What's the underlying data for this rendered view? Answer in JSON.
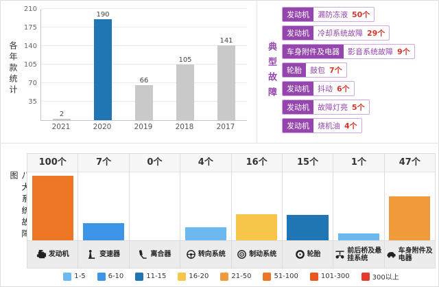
{
  "typical_faults": {
    "title": "典型故障",
    "accent_color": "#9446ad",
    "count_color": "#d5352b",
    "items": [
      {
        "system": "发动机",
        "fault": "漏防冻液",
        "count": "50个"
      },
      {
        "system": "发动机",
        "fault": "冷却系统故障",
        "count": "29个"
      },
      {
        "system": "车身附件及电器",
        "fault": "影音系统故障",
        "count": "9个"
      },
      {
        "system": "轮胎",
        "fault": "鼓包",
        "count": "7个"
      },
      {
        "system": "发动机",
        "fault": "抖动",
        "count": "6个"
      },
      {
        "system": "发动机",
        "fault": "故障灯亮",
        "count": "5个"
      },
      {
        "system": "发动机",
        "fault": "烧机油",
        "count": "4个"
      }
    ]
  },
  "chart_data": [
    {
      "type": "bar",
      "title": "各年款统计",
      "categories": [
        "2021",
        "2020",
        "2019",
        "2018",
        "2017"
      ],
      "values": [
        2,
        190,
        66,
        105,
        141
      ],
      "ylim": [
        0,
        210
      ],
      "yticks": [
        35,
        70,
        105,
        140,
        175,
        210
      ],
      "bar_colors": [
        "#c9c9c9",
        "#2076b4",
        "#c9c9c9",
        "#c9c9c9",
        "#c9c9c9"
      ],
      "highlight_color": "#2076b4",
      "grid": true,
      "data_labels": true,
      "xlabel": "",
      "ylabel": ""
    },
    {
      "type": "bar",
      "title": "八大系统故障图",
      "categories": [
        "发动机",
        "变速器",
        "离合器",
        "转向系统",
        "制动系统",
        "轮胎",
        "前后桥及悬挂系统",
        "车身附件及电器"
      ],
      "values": [
        100,
        7,
        0,
        4,
        16,
        15,
        1,
        47
      ],
      "count_labels": [
        "100个",
        "7个",
        "0个",
        "4个",
        "16个",
        "15个",
        "1个",
        "47个"
      ],
      "bar_colors": [
        "#ec7623",
        "#3d95e8",
        "",
        "#6cb9f0",
        "#f6c54a",
        "#2076b4",
        "#6cb9f0",
        "#f09a3c"
      ],
      "bar_scale": "sqrt",
      "icons": [
        "engine-icon",
        "gearshift-icon",
        "clutch-icon",
        "steering-wheel-icon",
        "brake-disc-icon",
        "tire-icon",
        "axle-suspension-icon",
        "car-body-icon"
      ],
      "legend_position": "bottom",
      "legend": [
        {
          "label": "1-5",
          "color": "#6cb9f0"
        },
        {
          "label": "6-10",
          "color": "#3d95e8"
        },
        {
          "label": "11-15",
          "color": "#2076b4"
        },
        {
          "label": "16-20",
          "color": "#f6c54a"
        },
        {
          "label": "21-50",
          "color": "#f09a3c"
        },
        {
          "label": "51-100",
          "color": "#ec7623"
        },
        {
          "label": "101-300",
          "color": "#e9581f"
        },
        {
          "label": "300以上",
          "color": "#e23a2e"
        }
      ]
    }
  ]
}
